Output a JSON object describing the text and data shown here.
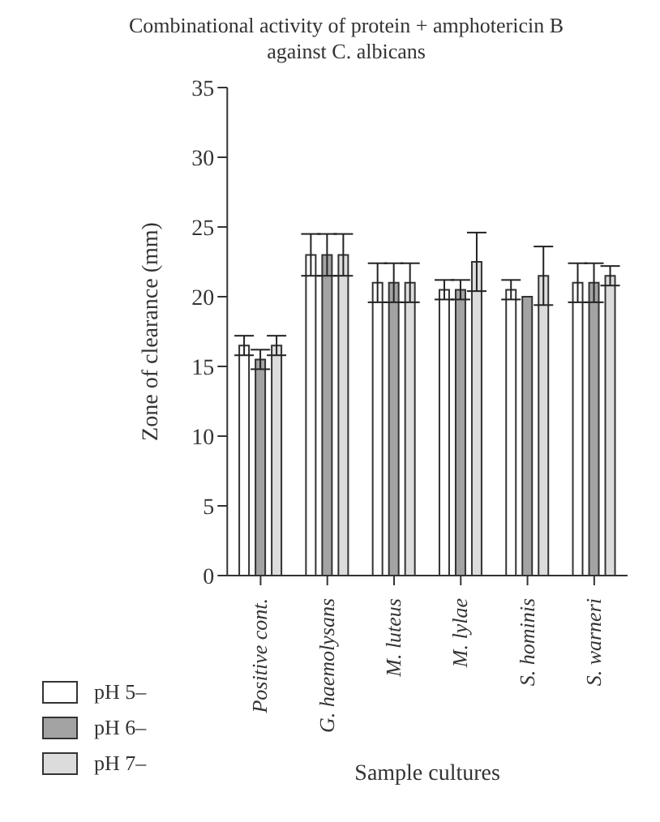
{
  "chart_data": {
    "type": "bar",
    "title": "Combinational activity of protein + amphotericin B against C. albicans",
    "xlabel": "Sample cultures",
    "ylabel": "Zone of clearance (mm)",
    "categories": [
      "Positive cont.",
      "G. haemolysans",
      "M. luteus",
      "M. lylae",
      "S. hominis",
      "S. warneri"
    ],
    "series": [
      {
        "name": "pH 5–",
        "color": "#ffffff",
        "values": [
          16.5,
          23,
          21,
          20.5,
          20.5,
          21
        ],
        "errors": [
          0.7,
          1.5,
          1.4,
          0.7,
          0.7,
          1.4
        ]
      },
      {
        "name": "pH 6–",
        "color": "#a3a3a3",
        "values": [
          15.5,
          23,
          21,
          20.5,
          20,
          21
        ],
        "errors": [
          0.7,
          1.5,
          1.4,
          0.7,
          null,
          1.4
        ]
      },
      {
        "name": "pH 7–",
        "color": "#dcdcdc",
        "values": [
          16.5,
          23,
          21,
          22.5,
          21.5,
          21.5
        ],
        "errors": [
          0.7,
          1.5,
          1.4,
          2.1,
          2.1,
          0.7
        ]
      }
    ],
    "ylim": [
      0,
      35
    ],
    "yticks": [
      0,
      5,
      10,
      15,
      20,
      25,
      30,
      35
    ],
    "grid": false,
    "legend": "bottom left"
  }
}
